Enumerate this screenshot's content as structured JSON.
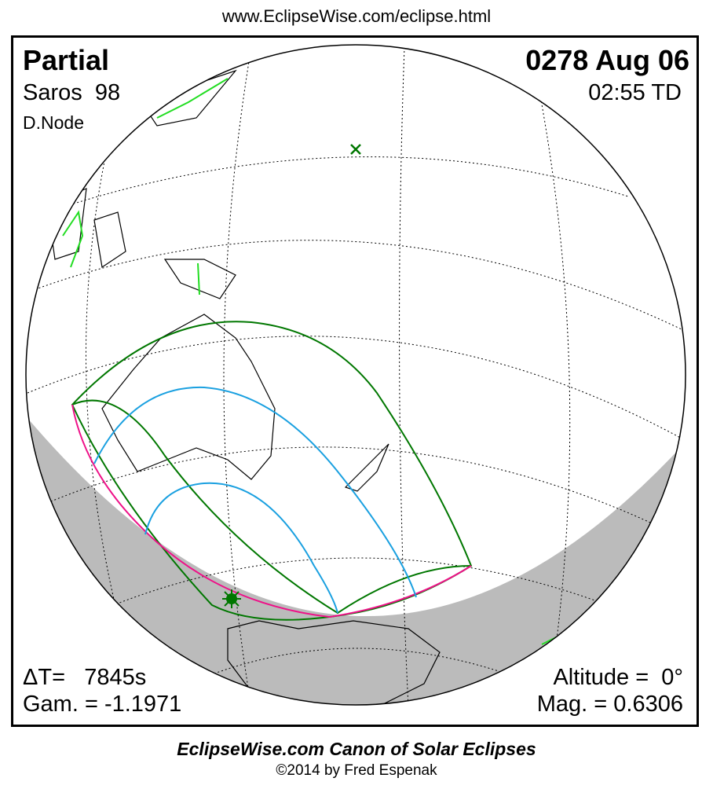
{
  "url": "www.EclipseWise.com/eclipse.html",
  "eclipse_type": "Partial",
  "date": "0278 Aug 06",
  "saros": "Saros  98",
  "time": "02:55 TD",
  "node": "D.Node",
  "delta_t": "ΔT=   7845s",
  "gamma": "Gam. = -1.1971",
  "altitude": "Altitude =  0°",
  "magnitude": "Mag. = 0.6306",
  "footer_title": "EclipseWise.com Canon of Solar Eclipses",
  "footer_copyright": "©2014 by Fred Espenak",
  "colors": {
    "limits": "#007700",
    "magnitude_curves": "#1aa0e0",
    "sunrise_sunset": "#ee1188",
    "night": "#bbbbbb",
    "coast_highlight": "#22dd22"
  },
  "markers": {
    "greatest_eclipse": "star-icon",
    "sub_solar": "x-icon"
  }
}
